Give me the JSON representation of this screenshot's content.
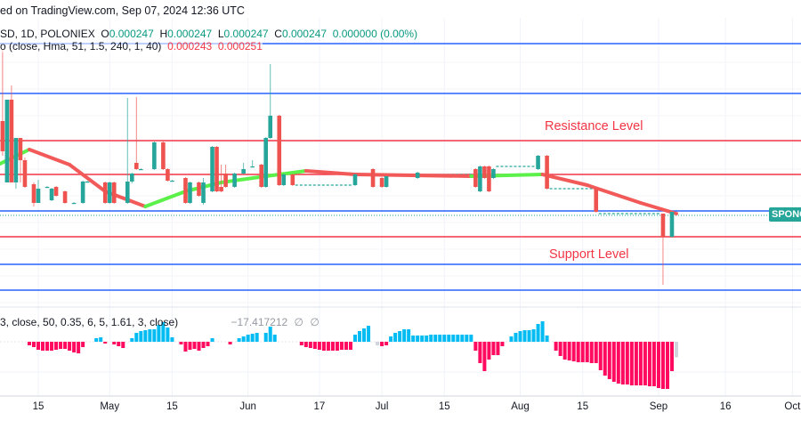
{
  "header": {
    "text": "ed on TradingView.com, Sep 07, 2024 12:36 UTC"
  },
  "legend": {
    "symbol": "SD, 1D, POLONIEX",
    "o_label": "O",
    "o": "0.000247",
    "h_label": "H",
    "h": "0.000247",
    "l_label": "L",
    "l": "0.000247",
    "c_label": "C",
    "c": "0.000247",
    "change": "0.000000 (0.00%)",
    "ma_params": "o (close, Hma, 51, 1.5, 240, 1, 40)",
    "ma_v1": "0.000243",
    "ma_v2": "0.000251"
  },
  "oscillator": {
    "params": "3, close, 50, 0.35, 6, 5, 1.61, 3, close)",
    "value": "−17.417212",
    "null1": "∅",
    "null2": "∅"
  },
  "annotations": {
    "resistance": "Resistance Level",
    "support": "Support Level"
  },
  "price_tag": "SPONG",
  "colors": {
    "up": "#26a69a",
    "down": "#ef5350",
    "ma_up": "#5cf04a",
    "ma_down": "#f25a5a",
    "level_blue": "#2962ff",
    "level_red": "#f23645",
    "hist_up": "#00bcf2",
    "hist_down": "#ff0a5e",
    "hist_neutral": "#d1d4dc"
  },
  "chart_data": {
    "type": "candlestick",
    "title": "SD, 1D, POLONIEX",
    "price_unit": "1e-6 USD",
    "x_ticks": [
      {
        "day": 14,
        "label": "15"
      },
      {
        "day": 30,
        "label": "May"
      },
      {
        "day": 44,
        "label": "15"
      },
      {
        "day": 61,
        "label": "Jun"
      },
      {
        "day": 77,
        "label": "17"
      },
      {
        "day": 91,
        "label": "Jul"
      },
      {
        "day": 105,
        "label": "15"
      },
      {
        "day": 122,
        "label": "Aug"
      },
      {
        "day": 136,
        "label": "15"
      },
      {
        "day": 153,
        "label": "Sep"
      },
      {
        "day": 168,
        "label": "16"
      },
      {
        "day": 183,
        "label": "Oct"
      }
    ],
    "levels": [
      {
        "price": 265.8,
        "color": "blue"
      },
      {
        "price": 260.2,
        "color": "blue"
      },
      {
        "price": 254.9,
        "color": "red"
      },
      {
        "price": 251.1,
        "color": "red"
      },
      {
        "price": 247.0,
        "color": "blue"
      },
      {
        "price": 244.1,
        "color": "red"
      },
      {
        "price": 241.0,
        "color": "blue"
      },
      {
        "price": 238.1,
        "color": "blue"
      }
    ],
    "last_price": 246.7,
    "candles": [
      [
        6,
        257.1,
        265.2,
        253.2,
        253.7
      ],
      [
        7,
        250.2,
        259.5,
        250.2,
        259.5
      ],
      [
        8,
        259.5,
        261.1,
        250.2,
        250.2
      ],
      [
        9,
        250.2,
        255.2,
        249.5,
        255.2
      ],
      [
        10,
        255.2,
        255.2,
        250.2,
        252.7
      ],
      [
        11,
        252.7,
        253.0,
        249.6,
        249.7
      ],
      [
        13,
        250.0,
        250.2,
        247.5,
        247.9
      ],
      [
        14,
        247.9,
        250.5,
        247.9,
        249.5
      ],
      [
        16,
        249.7,
        249.8,
        249.6,
        249.7
      ],
      [
        17,
        248.2,
        249.6,
        248.1,
        249.5
      ],
      [
        18,
        249.7,
        249.8,
        248.6,
        248.7
      ],
      [
        20,
        249.2,
        249.3,
        247.8,
        247.9
      ],
      [
        22,
        247.9,
        248.0,
        247.8,
        247.9
      ],
      [
        24,
        247.9,
        250.4,
        247.8,
        250.3
      ],
      [
        25,
        250.3,
        250.4,
        250.2,
        250.3
      ],
      [
        29,
        250.2,
        250.3,
        247.8,
        247.9
      ],
      [
        30,
        247.9,
        250.3,
        247.8,
        250.2
      ],
      [
        31,
        250.2,
        250.3,
        247.8,
        247.9
      ],
      [
        34,
        247.9,
        259.7,
        247.8,
        250.3
      ],
      [
        35,
        250.3,
        251.3,
        250.1,
        251.2
      ],
      [
        36,
        252.4,
        259.8,
        251.6,
        251.7
      ],
      [
        37,
        251.7,
        251.8,
        251.6,
        251.7
      ],
      [
        40,
        251.7,
        254.8,
        251.6,
        254.7
      ],
      [
        42,
        254.7,
        254.8,
        251.6,
        251.7
      ],
      [
        43,
        251.7,
        251.8,
        250.3,
        250.4
      ],
      [
        44,
        250.4,
        250.5,
        250.3,
        250.4
      ],
      [
        47,
        250.7,
        250.8,
        247.8,
        247.9
      ],
      [
        48,
        247.9,
        250.3,
        247.8,
        250.2
      ],
      [
        50,
        250.2,
        250.3,
        248.6,
        248.7
      ],
      [
        51,
        247.9,
        250.7,
        247.7,
        250.2
      ],
      [
        53,
        249.2,
        254.3,
        249.1,
        254.2
      ],
      [
        54,
        254.2,
        254.3,
        249.1,
        249.2
      ],
      [
        55,
        249.7,
        252.2,
        249.1,
        249.2
      ],
      [
        56,
        251.2,
        252.2,
        249.6,
        249.7
      ],
      [
        58,
        249.7,
        251.3,
        249.6,
        251.2
      ],
      [
        60,
        251.2,
        252.4,
        251.1,
        251.7
      ],
      [
        62,
        252.0,
        252.7,
        251.9,
        252.0
      ],
      [
        64,
        252.2,
        252.3,
        249.6,
        249.7
      ],
      [
        65,
        249.7,
        255.3,
        249.6,
        255.2
      ],
      [
        66,
        255.2,
        263.5,
        255.1,
        257.7
      ],
      [
        68,
        257.7,
        257.8,
        249.8,
        249.9
      ],
      [
        69,
        249.9,
        251.2,
        249.8,
        251.1
      ],
      [
        71,
        251.1,
        251.2,
        249.8,
        249.9
      ],
      [
        85,
        249.9,
        251.2,
        249.8,
        251.1
      ],
      [
        89,
        251.7,
        251.8,
        249.6,
        249.7
      ],
      [
        91,
        250.7,
        250.8,
        249.6,
        249.7
      ],
      [
        92,
        249.7,
        250.9,
        249.6,
        250.9
      ],
      [
        99,
        250.7,
        251.4,
        250.6,
        251.3
      ],
      [
        112,
        251.7,
        251.8,
        249.6,
        249.7
      ],
      [
        113,
        249.2,
        252.1,
        249.1,
        252.0
      ],
      [
        114,
        252.0,
        252.1,
        250.6,
        250.7
      ],
      [
        115,
        252.0,
        252.1,
        249.1,
        249.2
      ],
      [
        116,
        250.7,
        251.8,
        250.6,
        251.7
      ],
      [
        126,
        251.7,
        253.3,
        251.6,
        253.2
      ],
      [
        128,
        253.2,
        253.3,
        249.4,
        249.5
      ],
      [
        139,
        249.5,
        249.6,
        246.8,
        246.9
      ],
      [
        154,
        246.7,
        246.7,
        238.7,
        244.1
      ],
      [
        156,
        244.1,
        246.9,
        244.0,
        246.9
      ]
    ],
    "flat_ranges": [
      [
        72,
        84,
        249.9
      ],
      [
        93,
        111,
        251.1
      ],
      [
        117,
        125,
        252.0
      ],
      [
        129,
        138,
        249.5
      ],
      [
        140,
        153,
        246.7
      ]
    ],
    "ma": [
      [
        5,
        252.2,
        "up"
      ],
      [
        12,
        253.9,
        "down"
      ],
      [
        21,
        252.2,
        "down"
      ],
      [
        29,
        249.2,
        "down"
      ],
      [
        38,
        247.5,
        "up"
      ],
      [
        47,
        249.2,
        "up"
      ],
      [
        55,
        250.2,
        "up"
      ],
      [
        65,
        250.9,
        "up"
      ],
      [
        74,
        251.5,
        "down"
      ],
      [
        85,
        251.1,
        "down"
      ],
      [
        111,
        250.9,
        "up"
      ],
      [
        127,
        251.1,
        "down"
      ],
      [
        137,
        249.9,
        "down"
      ],
      [
        149,
        247.9,
        "down"
      ],
      [
        157,
        246.7,
        "down"
      ]
    ],
    "histogram_segments": [
      {
        "start": 12,
        "values": [
          -4,
          -6,
          -9,
          -10,
          -10,
          -10,
          -9,
          -8,
          -8,
          -10,
          -12,
          -13,
          -6
        ]
      },
      {
        "start": 27,
        "values": [
          4,
          5,
          -2
        ]
      },
      {
        "start": 31,
        "values": [
          -3,
          -5,
          -7
        ]
      },
      {
        "start": 35,
        "values": [
          4,
          10,
          12,
          13,
          14,
          14,
          19,
          22,
          16,
          5
        ]
      },
      {
        "start": 46,
        "values": [
          -3,
          -11,
          -9,
          -8,
          -10,
          -7,
          -5,
          4
        ]
      },
      {
        "start": 57,
        "values": [
          -3
        ]
      },
      {
        "start": 59,
        "values": [
          4,
          6,
          8,
          9,
          10
        ]
      },
      {
        "start": 65,
        "values": [
          10,
          17,
          8
        ]
      },
      {
        "start": 73,
        "values": [
          -4,
          -6,
          -7,
          -8,
          -9,
          -10,
          -10,
          -10,
          -10,
          -9,
          -9,
          -9,
          8,
          12,
          15,
          18
        ]
      },
      {
        "start": 90,
        "values": [
          -4
        ],
        "neutral": true
      },
      {
        "start": 91,
        "values": [
          -5,
          -4
        ]
      },
      {
        "start": 93,
        "values": [
          6,
          10,
          12,
          14,
          14,
          7,
          7,
          7,
          7,
          8,
          8,
          8,
          8,
          8,
          8,
          8,
          8,
          8,
          8
        ]
      },
      {
        "start": 112,
        "values": [
          -10,
          -24,
          -33,
          -20,
          -15,
          -15,
          -5
        ]
      },
      {
        "start": 120,
        "values": [
          6,
          10,
          12,
          13,
          13,
          14,
          20,
          23,
          7
        ]
      },
      {
        "start": 130,
        "values": [
          -10,
          -16,
          -20,
          -21,
          -22,
          -23,
          -23,
          -23,
          -24,
          -24,
          -32,
          -38,
          -42,
          -45,
          -47,
          -48,
          -48,
          -49,
          -49,
          -49,
          -49,
          -50,
          -50,
          -52,
          -53,
          -53,
          -33
        ]
      },
      {
        "start": 157,
        "values": [
          -17.417212
        ],
        "neutral": true
      }
    ]
  }
}
